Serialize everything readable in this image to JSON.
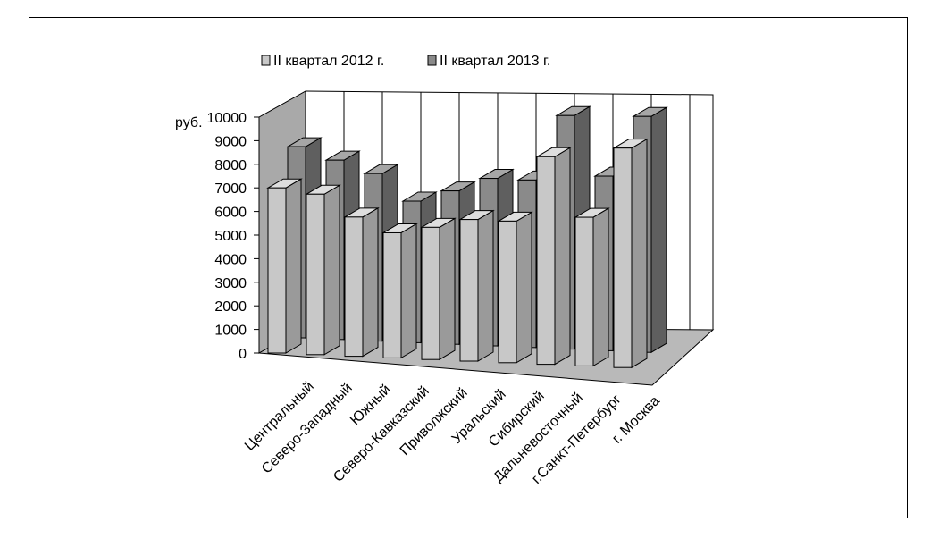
{
  "chart_data": {
    "type": "bar",
    "subtype": "3d-clustered-column",
    "title": "",
    "ylabel": "руб.",
    "xlabel": "",
    "ylim": [
      0,
      10000
    ],
    "yticks": [
      "0",
      "1000",
      "2000",
      "3000",
      "4000",
      "5000",
      "6000",
      "7000",
      "8000",
      "9000",
      "10000"
    ],
    "categories": [
      "Центральный",
      "Северо-Западный",
      "Южный",
      "Северо-Кавказский",
      "Приволжский",
      "Уральский",
      "Сибирский",
      "Дальневосточный",
      "г.Санкт-Петербург",
      "г. Москва"
    ],
    "series": [
      {
        "name": "II квартал 2012 г.",
        "values": [
          7000,
          6800,
          5900,
          5300,
          5600,
          6000,
          6000,
          8800,
          6300,
          9300
        ]
      },
      {
        "name": "II квартал 2013 г.",
        "values": [
          8100,
          7600,
          7100,
          6000,
          6500,
          7100,
          7100,
          9900,
          7400,
          10000
        ]
      }
    ],
    "legend_position": "top",
    "grid": true,
    "colors": {
      "series_2012": "#c4c4c4",
      "series_2013": "#8a8a8a",
      "back_wall_left": "#a9a9a9"
    }
  }
}
